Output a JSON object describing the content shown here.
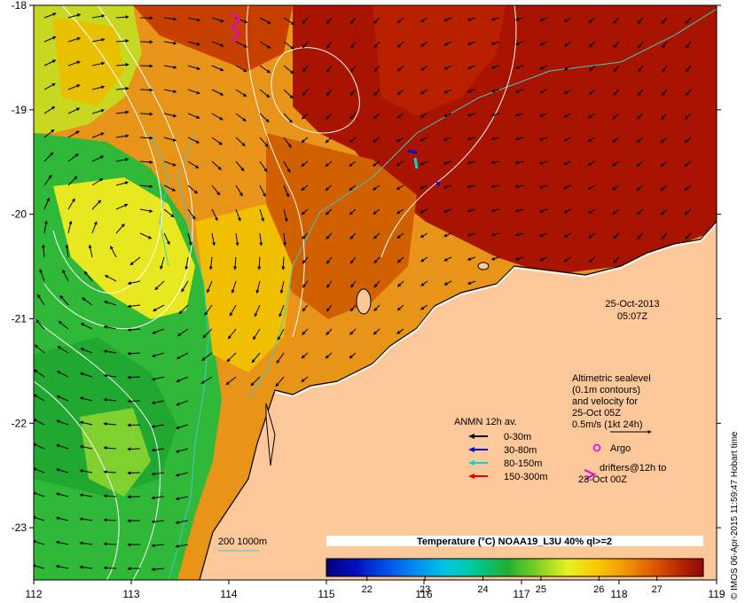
{
  "map": {
    "x_ticks": [
      "112",
      "113",
      "114",
      "115",
      "116",
      "117",
      "118",
      "119"
    ],
    "y_ticks": [
      "-18",
      "-19",
      "-20",
      "-21",
      "-22",
      "-23"
    ],
    "lon_range": [
      112,
      119
    ],
    "lat_range": [
      -23.5,
      -18
    ]
  },
  "date_stamp": {
    "date": "25-Oct-2013",
    "time": "05:07Z"
  },
  "altimetry_note": {
    "line1": "Altimetric sealevel",
    "line2": "(0.1m contours)",
    "line3": "and velocity for",
    "line4": "25-Oct 05Z",
    "line5": "0.5m/s (1kt 24h)"
  },
  "legend": {
    "anmn_title": "ANMN 12h av.",
    "items": [
      {
        "label": "0-30m",
        "color": "#000000"
      },
      {
        "label": "30-80m",
        "color": "#0000e0"
      },
      {
        "label": "80-150m",
        "color": "#00d8e0"
      },
      {
        "label": "150-300m",
        "color": "#e00000"
      }
    ],
    "argo_label": "Argo",
    "argo_color": "#e000e0",
    "drifters_line1": "drifters@12h to",
    "drifters_line2": "23-Oct 00Z",
    "drifter_color": "#e000e0"
  },
  "bathymetry": {
    "label": "200  1000m",
    "color": "#40c8c8"
  },
  "colorbar": {
    "title": "Temperature (°C) NOAA19_L3U 40% ql>=2",
    "ticks": [
      "22",
      "23",
      "24",
      "25",
      "26",
      "27"
    ],
    "min": 21.3,
    "max": 27.8
  },
  "credit": "© IMOS 06-Apr-2015 11:59:47 Hobart time",
  "colors": {
    "land": "#fcc89a",
    "warm": "#a01000",
    "cool": "#28b040",
    "contour": "#ffffff"
  }
}
